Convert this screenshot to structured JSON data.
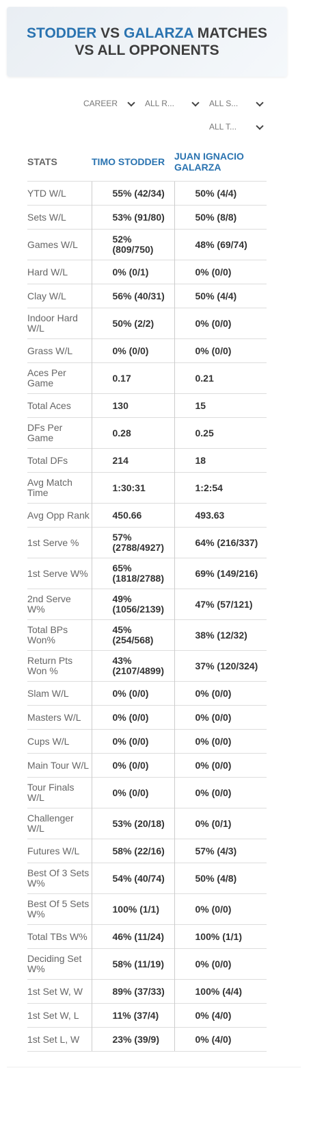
{
  "header": {
    "title_parts": [
      "STODDER",
      "VS",
      "GALARZA",
      "MATCHES VS ALL OPPONENTS"
    ]
  },
  "filters": [
    "CAREER",
    "ALL R...",
    "ALL S...",
    "ALL T..."
  ],
  "table": {
    "columns": [
      "STATS",
      "TIMO STODDER",
      "JUAN IGNACIO GALARZA"
    ],
    "rows": [
      [
        "YTD W/L",
        "55% (42/34)",
        "50% (4/4)"
      ],
      [
        "Sets W/L",
        "53% (91/80)",
        "50% (8/8)"
      ],
      [
        "Games W/L",
        "52% (809/750)",
        "48% (69/74)"
      ],
      [
        "Hard W/L",
        "0% (0/1)",
        "0% (0/0)"
      ],
      [
        "Clay W/L",
        "56% (40/31)",
        "50% (4/4)"
      ],
      [
        "Indoor Hard W/L",
        "50% (2/2)",
        "0% (0/0)"
      ],
      [
        "Grass W/L",
        "0% (0/0)",
        "0% (0/0)"
      ],
      [
        "Aces Per Game",
        "0.17",
        "0.21"
      ],
      [
        "Total Aces",
        "130",
        "15"
      ],
      [
        "DFs Per Game",
        "0.28",
        "0.25"
      ],
      [
        "Total DFs",
        "214",
        "18"
      ],
      [
        "Avg Match Time",
        "1:30:31",
        "1:2:54"
      ],
      [
        "Avg Opp Rank",
        "450.66",
        "493.63"
      ],
      [
        "1st Serve %",
        "57% (2788/4927)",
        "64% (216/337)"
      ],
      [
        "1st Serve W%",
        "65% (1818/2788)",
        "69% (149/216)"
      ],
      [
        "2nd Serve W%",
        "49% (1056/2139)",
        "47% (57/121)"
      ],
      [
        "Total BPs Won%",
        "45% (254/568)",
        "38% (12/32)"
      ],
      [
        "Return Pts Won %",
        "43% (2107/4899)",
        "37% (120/324)"
      ],
      [
        "Slam W/L",
        "0% (0/0)",
        "0% (0/0)"
      ],
      [
        "Masters W/L",
        "0% (0/0)",
        "0% (0/0)"
      ],
      [
        "Cups W/L",
        "0% (0/0)",
        "0% (0/0)"
      ],
      [
        "Main Tour W/L",
        "0% (0/0)",
        "0% (0/0)"
      ],
      [
        "Tour Finals W/L",
        "0% (0/0)",
        "0% (0/0)"
      ],
      [
        "Challenger W/L",
        "53% (20/18)",
        "0% (0/1)"
      ],
      [
        "Futures W/L",
        "58% (22/16)",
        "57% (4/3)"
      ],
      [
        "Best Of 3 Sets W%",
        "54% (40/74)",
        "50% (4/8)"
      ],
      [
        "Best Of 5 Sets W%",
        "100% (1/1)",
        "0% (0/0)"
      ],
      [
        "Total TBs W%",
        "46% (11/24)",
        "100% (1/1)"
      ],
      [
        "Deciding Set W%",
        "58% (11/19)",
        "0% (0/0)"
      ],
      [
        "1st Set W, W",
        "89% (37/33)",
        "100% (4/4)"
      ],
      [
        "1st Set W, L",
        "11% (37/4)",
        "0% (4/0)"
      ],
      [
        "1st Set L, W",
        "23% (39/9)",
        "0% (4/0)"
      ]
    ]
  }
}
